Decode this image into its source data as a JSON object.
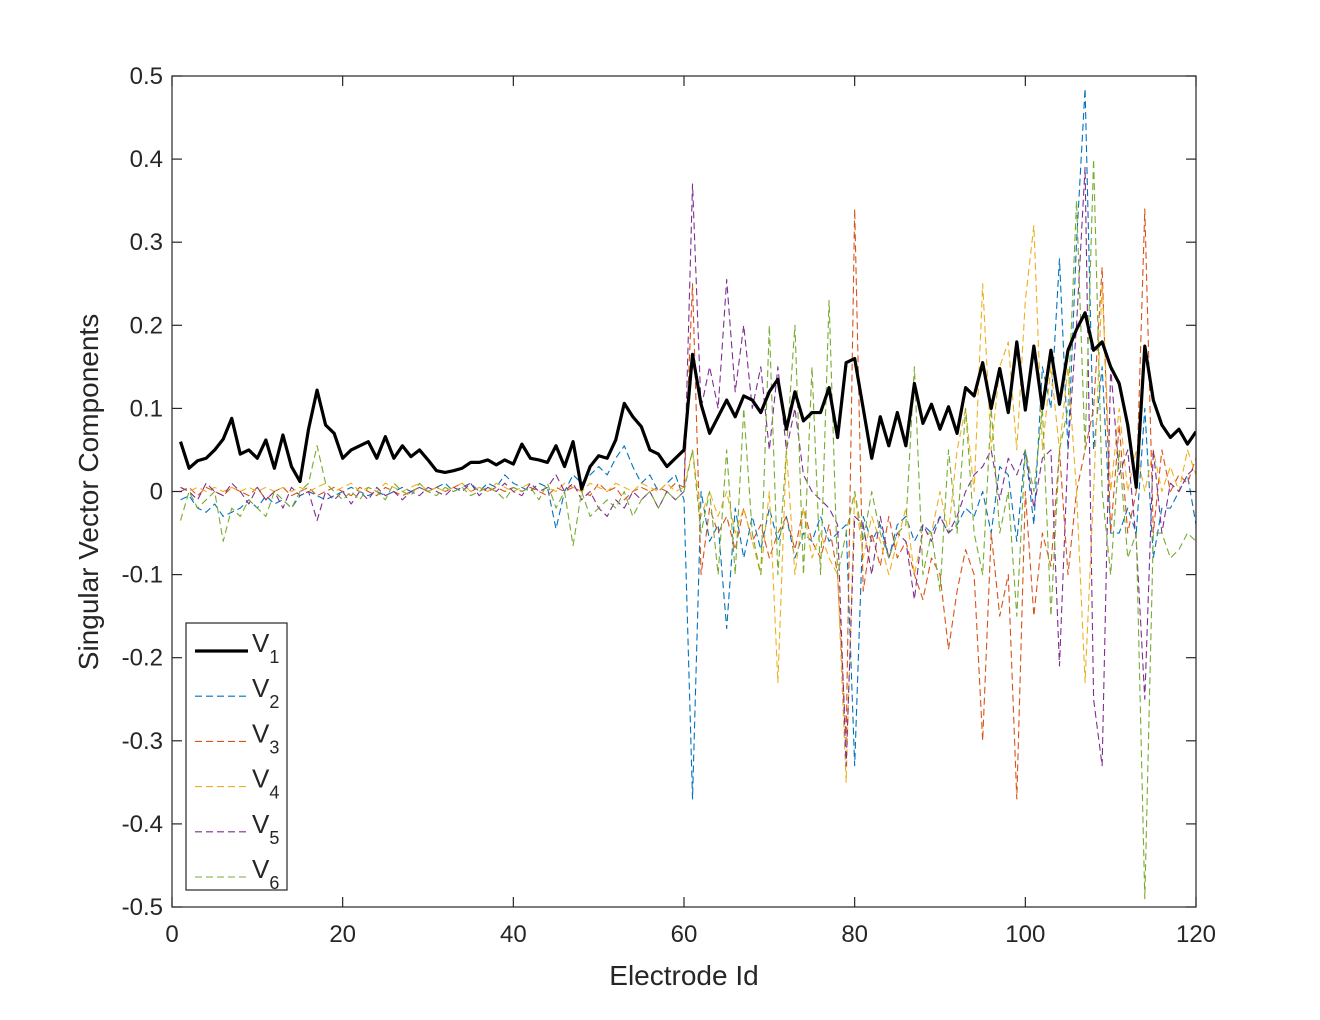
{
  "chart_data": {
    "type": "line",
    "title": "",
    "xlabel": "Electrode Id",
    "ylabel": "Singular Vector Components",
    "xlim": [
      0,
      120
    ],
    "ylim": [
      -0.5,
      0.5
    ],
    "xticks": [
      0,
      20,
      40,
      60,
      80,
      100,
      120
    ],
    "xtick_labels": [
      "0",
      "20",
      "40",
      "60",
      "80",
      "100",
      "120"
    ],
    "yticks": [
      0.5,
      0.4,
      0.3,
      0.2,
      0.1,
      0,
      -0.1,
      -0.2,
      -0.3,
      -0.4,
      -0.5
    ],
    "ytick_labels": [
      "0.5",
      "0.4",
      "0.3",
      "0.2",
      "0.1",
      "0",
      "-0.1",
      "-0.2",
      "-0.3",
      "-0.4",
      "-0.5"
    ],
    "grid": false,
    "legend_position": "bottom-left",
    "x_start": 1,
    "series": [
      {
        "name": "V",
        "sub": "1",
        "color": "#000000",
        "style": "solid",
        "values": [
          0.06,
          0.028,
          0.037,
          0.04,
          0.05,
          0.063,
          0.088,
          0.045,
          0.05,
          0.04,
          0.062,
          0.028,
          0.068,
          0.03,
          0.012,
          0.075,
          0.122,
          0.08,
          0.07,
          0.04,
          0.05,
          0.055,
          0.06,
          0.04,
          0.066,
          0.04,
          0.055,
          0.042,
          0.05,
          0.038,
          0.025,
          0.023,
          0.025,
          0.028,
          0.035,
          0.035,
          0.038,
          0.032,
          0.038,
          0.033,
          0.057,
          0.04,
          0.038,
          0.035,
          0.055,
          0.03,
          0.06,
          0.003,
          0.03,
          0.043,
          0.04,
          0.062,
          0.106,
          0.09,
          0.078,
          0.05,
          0.045,
          0.03,
          0.04,
          0.05,
          0.165,
          0.105,
          0.07,
          0.09,
          0.11,
          0.09,
          0.115,
          0.11,
          0.095,
          0.12,
          0.135,
          0.075,
          0.12,
          0.085,
          0.095,
          0.095,
          0.125,
          0.065,
          0.155,
          0.16,
          0.1,
          0.04,
          0.09,
          0.055,
          0.095,
          0.055,
          0.13,
          0.082,
          0.105,
          0.075,
          0.102,
          0.07,
          0.125,
          0.115,
          0.155,
          0.1,
          0.148,
          0.095,
          0.18,
          0.098,
          0.175,
          0.1,
          0.17,
          0.105,
          0.17,
          0.195,
          0.215,
          0.17,
          0.18,
          0.15,
          0.13,
          0.08,
          0.005,
          0.175,
          0.11,
          0.08,
          0.065,
          0.075,
          0.057,
          0.072
        ]
      },
      {
        "name": "V",
        "sub": "2",
        "color": "#0072BD",
        "style": "dashed",
        "values": [
          -0.01,
          -0.005,
          -0.02,
          -0.025,
          -0.015,
          -0.03,
          -0.025,
          -0.02,
          -0.01,
          -0.02,
          -0.005,
          -0.015,
          -0.01,
          -0.02,
          -0.005,
          0.0,
          -0.005,
          -0.01,
          -0.005,
          0.0,
          0.005,
          0.0,
          -0.005,
          0.0,
          -0.005,
          0.0,
          0.005,
          0.0,
          0.005,
          0.0,
          0.005,
          0.01,
          0.0,
          0.005,
          0.01,
          0.0,
          0.01,
          0.005,
          0.02,
          0.01,
          0.005,
          0.0,
          0.01,
          0.005,
          -0.045,
          0.0,
          0.02,
          0.01,
          0.02,
          0.03,
          0.02,
          0.04,
          0.055,
          0.03,
          0.01,
          0.02,
          0.0,
          0.01,
          0.02,
          -0.01,
          -0.37,
          0.0,
          -0.06,
          -0.04,
          -0.165,
          -0.02,
          -0.08,
          -0.03,
          -0.07,
          -0.02,
          -0.06,
          -0.03,
          -0.08,
          -0.05,
          -0.06,
          -0.03,
          -0.06,
          -0.05,
          -0.04,
          -0.33,
          -0.03,
          -0.06,
          -0.04,
          -0.08,
          -0.04,
          -0.03,
          -0.06,
          -0.04,
          -0.05,
          -0.03,
          -0.05,
          -0.04,
          -0.02,
          -0.03,
          0.0,
          -0.05,
          0.03,
          0.02,
          -0.06,
          0.05,
          -0.04,
          0.15,
          0.1,
          0.28,
          0.05,
          0.3,
          0.485,
          0.05,
          0.15,
          -0.05,
          -0.05,
          -0.02,
          -0.05,
          0.1,
          -0.08,
          -0.02,
          -0.02,
          0.0,
          0.02,
          -0.04
        ]
      },
      {
        "name": "V",
        "sub": "3",
        "color": "#D95319",
        "style": "dashed",
        "values": [
          0.0,
          0.005,
          -0.005,
          0.005,
          0.0,
          -0.005,
          0.005,
          0.0,
          -0.005,
          0.005,
          -0.01,
          0.0,
          0.005,
          -0.005,
          0.0,
          0.005,
          -0.005,
          0.0,
          0.005,
          0.0,
          -0.005,
          0.005,
          0.0,
          -0.005,
          0.005,
          0.0,
          -0.005,
          0.0,
          0.005,
          0.0,
          0.005,
          0.0,
          0.005,
          0.01,
          0.0,
          0.005,
          0.0,
          0.005,
          0.0,
          0.005,
          0.0,
          0.005,
          0.0,
          -0.005,
          0.005,
          0.0,
          0.005,
          0.0,
          -0.005,
          0.01,
          0.0,
          0.005,
          -0.01,
          0.0,
          0.005,
          0.0,
          0.005,
          0.0,
          0.01,
          0.005,
          0.25,
          -0.1,
          -0.02,
          -0.05,
          -0.03,
          -0.07,
          -0.02,
          -0.06,
          -0.04,
          -0.08,
          -0.05,
          -0.03,
          -0.07,
          -0.02,
          -0.06,
          -0.08,
          -0.04,
          -0.1,
          -0.3,
          0.34,
          -0.12,
          -0.05,
          -0.09,
          -0.03,
          -0.08,
          -0.06,
          -0.1,
          -0.13,
          -0.08,
          -0.1,
          -0.19,
          -0.12,
          -0.07,
          -0.1,
          -0.3,
          -0.05,
          -0.15,
          -0.1,
          -0.37,
          0.0,
          -0.15,
          -0.05,
          -0.09,
          0.05,
          -0.1,
          0.0,
          0.05,
          0.1,
          0.27,
          -0.05,
          0.08,
          -0.05,
          0.0,
          0.34,
          -0.05,
          0.05,
          0.0,
          0.02,
          0.01,
          0.04
        ]
      },
      {
        "name": "V",
        "sub": "4",
        "color": "#EDB120",
        "style": "dashed",
        "values": [
          0.005,
          0.0,
          0.005,
          0.0,
          0.005,
          0.0,
          0.005,
          0.0,
          0.005,
          0.0,
          0.005,
          0.0,
          0.005,
          0.0,
          0.005,
          0.0,
          0.005,
          0.01,
          0.0,
          0.005,
          0.01,
          0.0,
          0.005,
          0.0,
          0.01,
          0.005,
          0.0,
          0.005,
          0.01,
          0.0,
          0.005,
          0.0,
          0.005,
          0.01,
          0.0,
          0.005,
          0.0,
          0.01,
          0.005,
          0.0,
          0.005,
          0.01,
          0.0,
          0.005,
          0.0,
          0.01,
          0.005,
          0.0,
          0.01,
          0.005,
          0.0,
          0.01,
          0.005,
          0.0,
          0.01,
          0.005,
          0.0,
          0.01,
          0.0,
          0.005,
          0.05,
          -0.03,
          0.0,
          -0.03,
          0.0,
          -0.05,
          -0.02,
          -0.06,
          -0.1,
          0.0,
          -0.23,
          0.05,
          -0.1,
          -0.02,
          -0.08,
          -0.05,
          -0.08,
          -0.1,
          -0.35,
          0.0,
          -0.08,
          -0.03,
          -0.06,
          -0.1,
          -0.06,
          -0.02,
          -0.1,
          -0.05,
          -0.05,
          0.0,
          -0.05,
          0.05,
          0.1,
          0.0,
          0.25,
          0.05,
          0.15,
          0.18,
          0.05,
          0.23,
          0.32,
          0.05,
          0.15,
          0.05,
          0.15,
          0.0,
          -0.23,
          0.0,
          0.25,
          0.0,
          0.1,
          0.0,
          0.05,
          0.0,
          0.05,
          0.0,
          0.03,
          0.0,
          0.05,
          0.02
        ]
      },
      {
        "name": "V",
        "sub": "5",
        "color": "#7E2F8E",
        "style": "dashed",
        "values": [
          0.005,
          0.0,
          -0.01,
          0.01,
          0.0,
          -0.005,
          0.01,
          0.0,
          -0.015,
          0.005,
          -0.01,
          0.0,
          -0.02,
          0.005,
          -0.005,
          0.0,
          -0.035,
          0.0,
          -0.01,
          0.0,
          -0.015,
          0.0,
          -0.01,
          0.005,
          -0.005,
          0.0,
          -0.01,
          0.0,
          -0.005,
          0.005,
          0.0,
          -0.005,
          0.005,
          0.0,
          0.01,
          -0.005,
          0.005,
          0.0,
          0.01,
          0.0,
          -0.005,
          0.01,
          0.0,
          0.005,
          0.02,
          0.0,
          0.01,
          -0.01,
          0.0,
          -0.02,
          -0.03,
          -0.01,
          -0.02,
          0.0,
          -0.01,
          0.0,
          -0.02,
          0.0,
          -0.01,
          0.0,
          0.37,
          0.1,
          0.15,
          0.1,
          0.255,
          0.12,
          0.2,
          0.1,
          0.15,
          0.05,
          0.15,
          0.05,
          0.1,
          0.02,
          0.0,
          -0.01,
          -0.02,
          -0.04,
          -0.33,
          -0.03,
          -0.04,
          -0.1,
          -0.03,
          -0.08,
          -0.05,
          -0.06,
          -0.13,
          -0.04,
          -0.06,
          -0.03,
          -0.05,
          -0.03,
          0.0,
          0.02,
          0.03,
          0.05,
          -0.01,
          0.04,
          0.02,
          0.05,
          -0.02,
          0.04,
          0.05,
          -0.21,
          0.05,
          0.2,
          0.39,
          -0.25,
          -0.33,
          0.15,
          0.02,
          0.05,
          -0.06,
          -0.25,
          0.05,
          -0.05,
          0.01,
          0.0,
          0.02,
          0.03
        ]
      },
      {
        "name": "V",
        "sub": "6",
        "color": "#77AC30",
        "style": "dashed",
        "values": [
          -0.035,
          0.0,
          -0.02,
          -0.01,
          0.0,
          -0.06,
          -0.02,
          -0.03,
          -0.01,
          -0.02,
          -0.03,
          0.0,
          -0.01,
          -0.02,
          0.0,
          0.01,
          0.055,
          0.01,
          0.0,
          -0.01,
          0.0,
          -0.01,
          0.005,
          0.0,
          -0.01,
          0.01,
          0.0,
          -0.005,
          0.01,
          0.0,
          -0.005,
          0.005,
          0.0,
          0.005,
          -0.005,
          0.0,
          0.005,
          0.0,
          -0.01,
          0.005,
          0.0,
          0.005,
          -0.01,
          0.01,
          -0.02,
          0.0,
          -0.065,
          0.0,
          -0.03,
          -0.02,
          -0.01,
          -0.02,
          0.0,
          -0.03,
          -0.01,
          0.0,
          -0.02,
          0.0,
          -0.01,
          0.0,
          0.05,
          -0.05,
          0.0,
          -0.1,
          0.05,
          -0.1,
          0.1,
          -0.05,
          -0.1,
          0.2,
          -0.1,
          0.05,
          0.2,
          -0.1,
          0.15,
          -0.1,
          0.23,
          -0.1,
          -0.05,
          0.0,
          -0.06,
          0.0,
          -0.05,
          -0.08,
          -0.05,
          -0.04,
          0.15,
          -0.1,
          -0.05,
          -0.12,
          0.05,
          -0.05,
          0.1,
          -0.05,
          -0.1,
          0.1,
          -0.05,
          0.0,
          -0.15,
          0.05,
          0.0,
          0.1,
          -0.15,
          0.05,
          0.1,
          0.35,
          0.05,
          0.4,
          0.0,
          -0.1,
          0.05,
          -0.08,
          -0.05,
          -0.49,
          -0.05,
          -0.05,
          -0.08,
          -0.07,
          -0.05,
          -0.06
        ]
      }
    ]
  }
}
